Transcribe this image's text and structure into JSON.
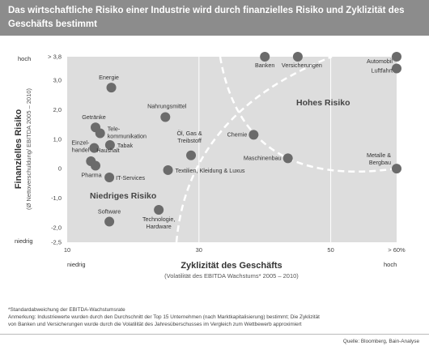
{
  "title": "Das wirtschaftliche Risiko einer Industrie wird durch finanzielles Risiko und Zyklizität des Geschäfts bestimmt",
  "colors": {
    "title_bg": "#8c8c8c",
    "plot_bg": "#dddddd",
    "dot": "#6b6b6b",
    "dashed": "#ffffff"
  },
  "chart_data": {
    "type": "scatter",
    "title": "",
    "xlabel": "Zyklizität des Geschäfts",
    "xlabel_sub": "(Volatilität des EBITDA Wachstums* 2005 – 2010)",
    "ylabel": "Finanzielles Risiko",
    "ylabel_sub": "(Ø Nettoverschuldung/ EBITDA 2005 – 2010)",
    "xlim": [
      10,
      60
    ],
    "ylim": [
      -2.5,
      3.8
    ],
    "x_ticks": [
      {
        "value": 10,
        "label": "10"
      },
      {
        "value": 30,
        "label": "30"
      },
      {
        "value": 50,
        "label": "50"
      },
      {
        "value": 60,
        "label": "> 60%"
      }
    ],
    "y_ticks": [
      {
        "value": 3.8,
        "label": "> 3,8"
      },
      {
        "value": 3.0,
        "label": "3,0"
      },
      {
        "value": 2.0,
        "label": "2,0"
      },
      {
        "value": 1.0,
        "label": "1,0"
      },
      {
        "value": 0.0,
        "label": "0"
      },
      {
        "value": -1.0,
        "label": "-1,0"
      },
      {
        "value": -2.0,
        "label": "-2,0"
      },
      {
        "value": -2.5,
        "label": "-2,5"
      }
    ],
    "x_end_labels": {
      "low": "niedrig",
      "high": "hoch"
    },
    "y_end_labels": {
      "low": "niedrig",
      "high": "hoch"
    },
    "regions": {
      "high": "Hohes Risiko",
      "low": "Niedriges Risiko"
    },
    "points": [
      {
        "label": "Banken",
        "x": 40,
        "y": 3.8
      },
      {
        "label": "Versicherungen",
        "x": 45,
        "y": 3.8
      },
      {
        "label": "Automobil",
        "x": 60,
        "y": 3.8
      },
      {
        "label": "Luftfahrt",
        "x": 60,
        "y": 3.4
      },
      {
        "label": "Energie",
        "x": 16.7,
        "y": 2.75
      },
      {
        "label": "Nahrungsmittel",
        "x": 24.9,
        "y": 1.75
      },
      {
        "label": "Getränke",
        "x": 14.3,
        "y": 1.4
      },
      {
        "label": "Telekommunikation",
        "x": 15.0,
        "y": 1.2
      },
      {
        "label": "Chemie",
        "x": 38.3,
        "y": 1.15
      },
      {
        "label": "Tabak",
        "x": 16.5,
        "y": 0.8
      },
      {
        "label": "Einzelhandel",
        "x": 14.1,
        "y": 0.7
      },
      {
        "label": "Haushalt",
        "x": 13.6,
        "y": 0.25
      },
      {
        "label": "Öl, Gas & Treibstoff",
        "x": 28.8,
        "y": 0.45
      },
      {
        "label": "Maschinenbau",
        "x": 43.5,
        "y": 0.35
      },
      {
        "label": "Metalle & Bergbau",
        "x": 60,
        "y": 0.0
      },
      {
        "label": "Pharma",
        "x": 14.3,
        "y": 0.1
      },
      {
        "label": "Textilien, Kleidung & Luxus",
        "x": 25.3,
        "y": -0.05
      },
      {
        "label": "IT-Services",
        "x": 16.4,
        "y": -0.3
      },
      {
        "label": "Technologie, Hardware",
        "x": 23.9,
        "y": -1.4
      },
      {
        "label": "Software",
        "x": 16.4,
        "y": -1.8
      }
    ]
  },
  "footnotes": [
    "*Standardabweichung der EBITDA-Wachstumsrate",
    "Anmerkung: Industriewerte wurden durch den Durchschnitt der Top 15 Unternehmen (nach Marktkapitalisierung) bestimmt; Die Zyklizität",
    "von Banken und Versicherungen wurde durch die Volatilität des Jahresüberschusses im Vergleich zum Wettbewerb approximiert"
  ],
  "source": "Quelle: Bloomberg, Bain-Analyse"
}
